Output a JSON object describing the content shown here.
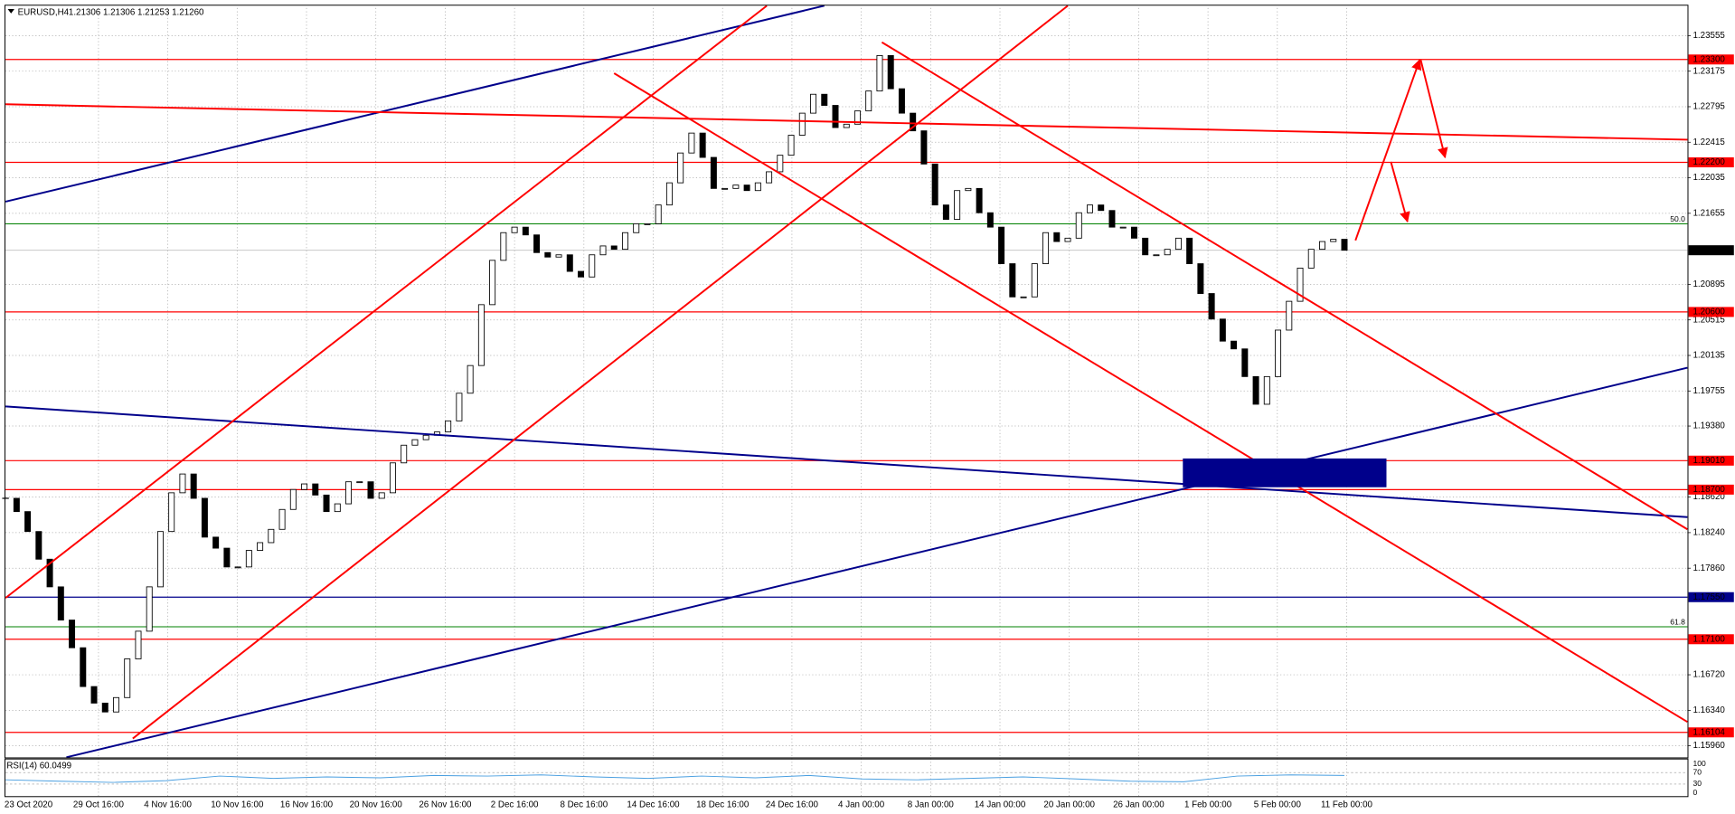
{
  "chart_data": {
    "type": "candlestick",
    "title": "EURUSD,H4",
    "quote": "1.21306 1.21306 1.21253 1.21260",
    "color": "#000000",
    "values": [
      1.18607,
      1.18465,
      1.18252,
      1.17956,
      1.1766,
      1.17305,
      1.17009,
      1.16594,
      1.16417,
      1.16322,
      1.16476,
      1.1689,
      1.17186,
      1.1766,
      1.18252,
      1.18666,
      1.18867,
      1.18607,
      1.18192,
      1.18074,
      1.17873,
      1.17873,
      1.1805,
      1.18133,
      1.18275,
      1.18488,
      1.18701,
      1.18761,
      1.18642,
      1.18465,
      1.18548,
      1.18784,
      1.18784,
      1.18607,
      1.18666,
      1.18986,
      1.19175,
      1.19234,
      1.19281,
      1.19317,
      1.19435,
      1.19731,
      1.20027,
      1.20678,
      1.21152,
      1.21448,
      1.21507,
      1.21424,
      1.21235,
      1.21187,
      1.21211,
      1.21034,
      1.20974,
      1.21211,
      1.21306,
      1.2127,
      1.21448,
      1.21543,
      1.21543,
      1.21744,
      1.21981,
      1.223,
      1.22513,
      1.22253,
      1.21921,
      1.21921,
      1.21957,
      1.21898,
      1.21981,
      1.22099,
      1.22276,
      1.2249,
      1.22726,
      1.22928,
      1.22809,
      1.22572,
      1.22608,
      1.2275,
      1.22963,
      1.23342,
      1.22987,
      1.22726,
      1.22537,
      1.22182,
      1.21744,
      1.2159,
      1.21898,
      1.21921,
      1.21661,
      1.21507,
      1.21116,
      1.20761,
      1.20761,
      1.21116,
      1.21448,
      1.21353,
      1.21389,
      1.21661,
      1.21744,
      1.21685,
      1.21507,
      1.21507,
      1.21389,
      1.21211,
      1.21211,
      1.2127,
      1.21389,
      1.21116,
      1.20797,
      1.20524,
      1.20288,
      1.20205,
      1.19909,
      1.19613,
      1.19909,
      1.20406,
      1.20714,
      1.21069,
      1.2127,
      1.21353,
      1.21377,
      1.2126
    ],
    "ylim": [
      1.15837,
      1.23851
    ],
    "yticks": [
      1.23555,
      1.23175,
      1.22795,
      1.22415,
      1.22035,
      1.21655,
      1.20895,
      1.20515,
      1.20135,
      1.19755,
      {
        "value": 1.1938,
        "label": "1.19380"
      },
      {
        "value": 1.1862,
        "label": "1.18620"
      },
      {
        "value": 1.1824,
        "label": "1.18240"
      },
      {
        "value": 1.1786,
        "label": "1.17860"
      },
      {
        "value": 1.1672,
        "label": "1.16720"
      },
      {
        "value": 1.1634,
        "label": "1.16340"
      },
      {
        "value": 1.1596,
        "label": "1.15960"
      }
    ],
    "grid": true,
    "x_labels": [
      "23 Oct 2020",
      "29 Oct 16:00",
      "4 Nov 16:00",
      "10 Nov 16:00",
      "16 Nov 16:00",
      "20 Nov 16:00",
      "26 Nov 16:00",
      "2 Dec 16:00",
      "8 Dec 16:00",
      "14 Dec 16:00",
      "18 Dec 16:00",
      "24 Dec 16:00",
      "4 Jan 00:00",
      "8 Jan 00:00",
      "14 Jan 00:00",
      "20 Jan 00:00",
      "26 Jan 00:00",
      "1 Feb 00:00",
      "5 Feb 00:00",
      "11 Feb 00:00"
    ],
    "levels": [
      {
        "value": 1.233,
        "label": "1.23300",
        "color": "#ff0000"
      },
      {
        "value": 1.222,
        "label": "1.22200",
        "color": "#ff0000"
      },
      {
        "value": 1.206,
        "label": "1.20600",
        "color": "#ff0000"
      },
      {
        "value": 1.1901,
        "label": "1.19010",
        "color": "#ff0000"
      },
      {
        "value": 1.187,
        "label": "1.18700",
        "color": "#ff0000"
      },
      {
        "value": 1.1755,
        "label": "1.17550",
        "color": "#00008b"
      },
      {
        "value": 1.171,
        "label": "1.17100",
        "color": "#ff0000"
      },
      {
        "value": 1.16104,
        "label": "1.16104",
        "color": "#ff0000"
      }
    ],
    "current": {
      "value": 1.2126,
      "label": "1.21260",
      "color": "#000000"
    },
    "fibo": [
      {
        "price": 1.21542,
        "label": "50.0"
      },
      {
        "price": 1.17233,
        "label": "61.8"
      }
    ],
    "fibo_color": "#008000",
    "indicator": {
      "label": "RSI(14) 60.0499",
      "color": "#4a9fe0",
      "ylim": [
        0,
        100
      ],
      "yticks": [
        100,
        70,
        30,
        0
      ],
      "values": [
        45,
        40,
        36,
        42,
        58,
        50,
        55,
        52,
        60,
        58,
        62,
        55,
        50,
        58,
        52,
        60,
        48,
        45,
        50,
        55,
        48,
        40,
        38,
        58,
        62,
        60
      ]
    }
  }
}
